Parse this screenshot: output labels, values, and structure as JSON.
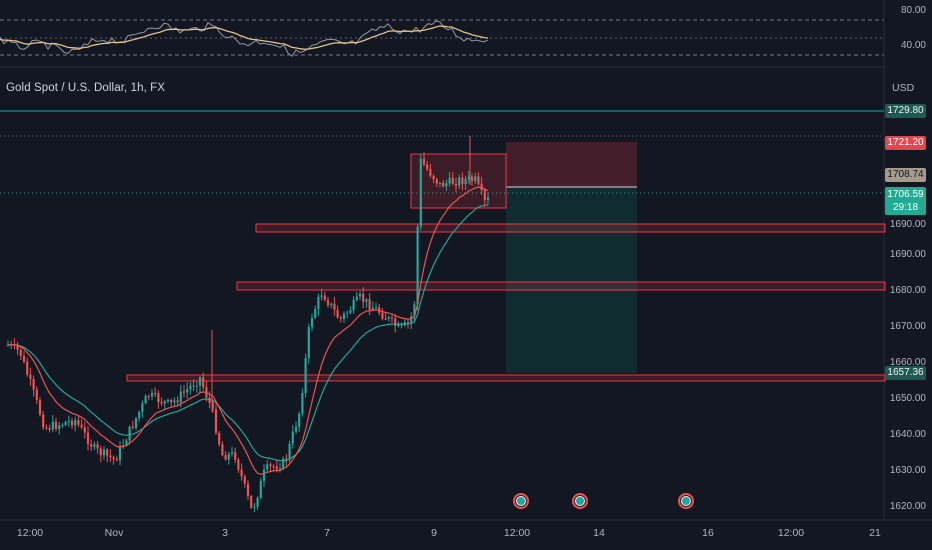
{
  "header": {
    "title": "Gold Spot / U.S. Dollar, 1h, FX",
    "currency": "USD"
  },
  "rsi": {
    "labels": [
      "80.00",
      "40.00"
    ]
  },
  "price_axis": {
    "labels": [
      "1690.00",
      "1680.00",
      "1670.00",
      "1660.00",
      "1650.00",
      "1640.00",
      "1630.00",
      "1620.00"
    ]
  },
  "badges": {
    "target": "1729.80",
    "stop": "1721.20",
    "entry": "1708.74",
    "last": "1706.59",
    "countdown": "29:18",
    "support": "1657.36"
  },
  "time_axis": [
    "12:00",
    "Nov",
    "3",
    "7",
    "9",
    "12:00",
    "14",
    "16",
    "12:00",
    "21"
  ],
  "events": [
    "economic-event",
    "economic-event",
    "economic-event"
  ],
  "colors": {
    "background": "#131722",
    "up": "#26a69a",
    "down": "#ef5350",
    "zone": "#f23645",
    "ema_fast": "#ef5350",
    "ema_slow": "#26a69a"
  }
}
